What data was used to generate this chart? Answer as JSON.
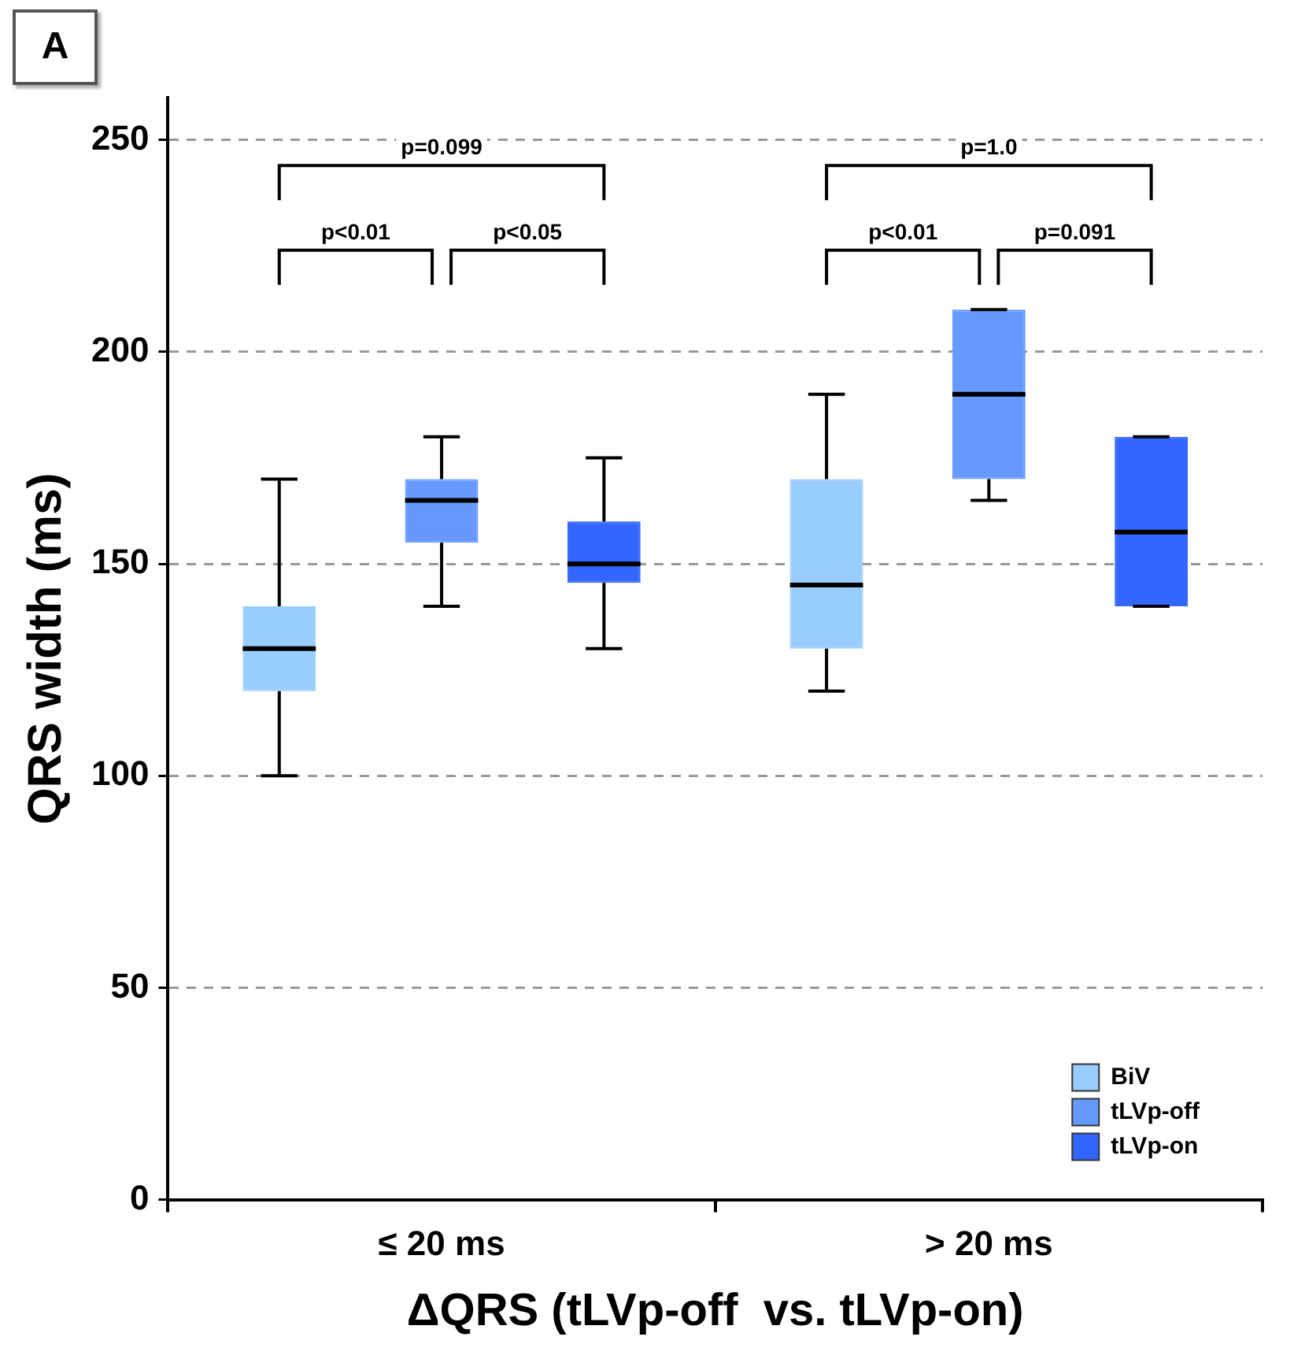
{
  "chart_data": {
    "type": "box",
    "xlabel": "ΔQRS (tLVp-off  vs. tLVp-on)",
    "ylabel": "QRS width (ms)",
    "categories": [
      "≤ 20 ms",
      "> 20 ms"
    ],
    "series": [
      {
        "name": "BiV",
        "color": "#99ccff",
        "boxes": [
          {
            "low": 100,
            "q1": 120,
            "median": 130,
            "q3": 140,
            "high": 170
          },
          {
            "low": 120,
            "q1": 130,
            "median": 145,
            "q3": 170,
            "high": 190
          }
        ]
      },
      {
        "name": "tLVp-off",
        "color": "#6699ff",
        "boxes": [
          {
            "low": 140,
            "q1": 155,
            "median": 165,
            "q3": 170,
            "high": 180
          },
          {
            "low": 165,
            "q1": 170,
            "median": 190,
            "q3": 210,
            "high": 210
          }
        ]
      },
      {
        "name": "tLVp-on",
        "color": "#3366ff",
        "boxes": [
          {
            "low": 130,
            "q1": 145.5,
            "median": 150,
            "q3": 160,
            "high": 175
          },
          {
            "low": 140,
            "q1": 140,
            "median": 157.5,
            "q3": 180,
            "high": 180
          }
        ]
      }
    ],
    "ylim": [
      0,
      260
    ],
    "yticks": [
      0,
      50,
      100,
      150,
      200,
      250
    ],
    "grid": "y",
    "legend": "bottom right",
    "annotations": [
      "A",
      "p=0.099",
      "p<0.01",
      "p<0.05",
      "p=1.0",
      "p<0.01",
      "p=0.091"
    ]
  }
}
